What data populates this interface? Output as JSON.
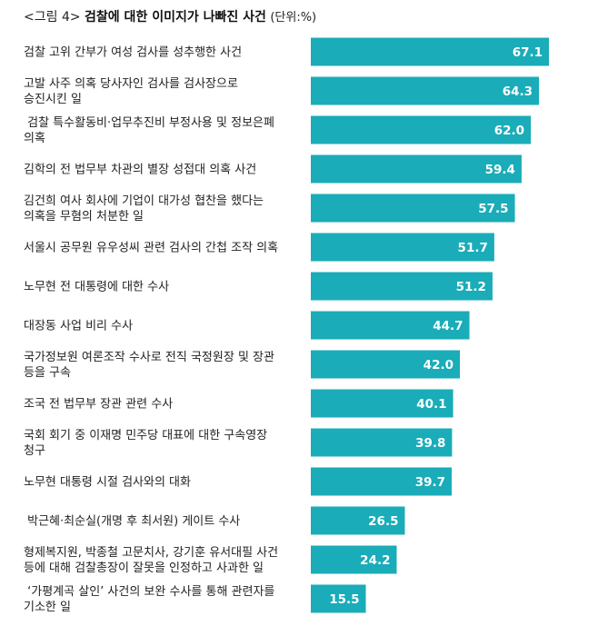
{
  "title_prefix": "<그림 4>",
  "title": "검찰에 대한 이미지가 나빠진 사건",
  "unit": "(단위:%)",
  "bar_color": "#1aacb8",
  "chart_data": {
    "type": "bar",
    "orientation": "horizontal",
    "title": "검찰에 대한 이미지가 나빠진 사건",
    "unit": "(단위:%)",
    "categories": [
      [
        "검찰 고위 간부가 여성 검사를 성추행한 사건"
      ],
      [
        "고발 사주 의혹 당사자인 검사를 검사장으로",
        "승진시킨 일"
      ],
      [
        " 검찰 특수활동비·업무추진비 부정사용 및 정보은폐",
        "의혹"
      ],
      [
        "김학의 전 법무부 차관의 별장 성접대 의혹 사건"
      ],
      [
        "김건희 여사 회사에 기업이 대가성 협찬을 했다는",
        "의혹을 무혐의 처분한 일"
      ],
      [
        "서울시 공무원 유우성씨 관련 검사의 간첩 조작 의혹"
      ],
      [
        "노무현 전 대통령에 대한 수사"
      ],
      [
        "대장동 사업 비리 수사"
      ],
      [
        "국가정보원 여론조작 수사로 전직 국정원장 및 장관",
        "등을 구속"
      ],
      [
        "조국 전 법무부 장관 관련 수사"
      ],
      [
        "국회 회기 중 이재명 민주당 대표에 대한 구속영장",
        "청구"
      ],
      [
        "노무현 대통령 시절 검사와의 대화"
      ],
      [
        " 박근혜·최순실(개명 후 최서원) 게이트 수사"
      ],
      [
        "형제복지원, 박종철 고문치사, 강기훈 유서대필 사건",
        "등에 대해 검찰총장이 잘못을 인정하고 사과한 일"
      ],
      [
        " ‘가평계곡 살인’ 사건의 보완 수사를 통해 관련자를",
        "기소한 일"
      ]
    ],
    "values": [
      67.1,
      64.3,
      62.0,
      59.4,
      57.5,
      51.7,
      51.2,
      44.7,
      42.0,
      40.1,
      39.8,
      39.7,
      26.5,
      24.2,
      15.5
    ],
    "value_labels": [
      "67.1",
      "64.3",
      "62.0",
      "59.4",
      "57.5",
      "51.7",
      "51.2",
      "44.7",
      "42.0",
      "40.1",
      "39.8",
      "39.7",
      "26.5",
      "24.2",
      "15.5"
    ],
    "xlim": [
      0,
      67.1
    ],
    "grid": false,
    "legend": "none"
  }
}
